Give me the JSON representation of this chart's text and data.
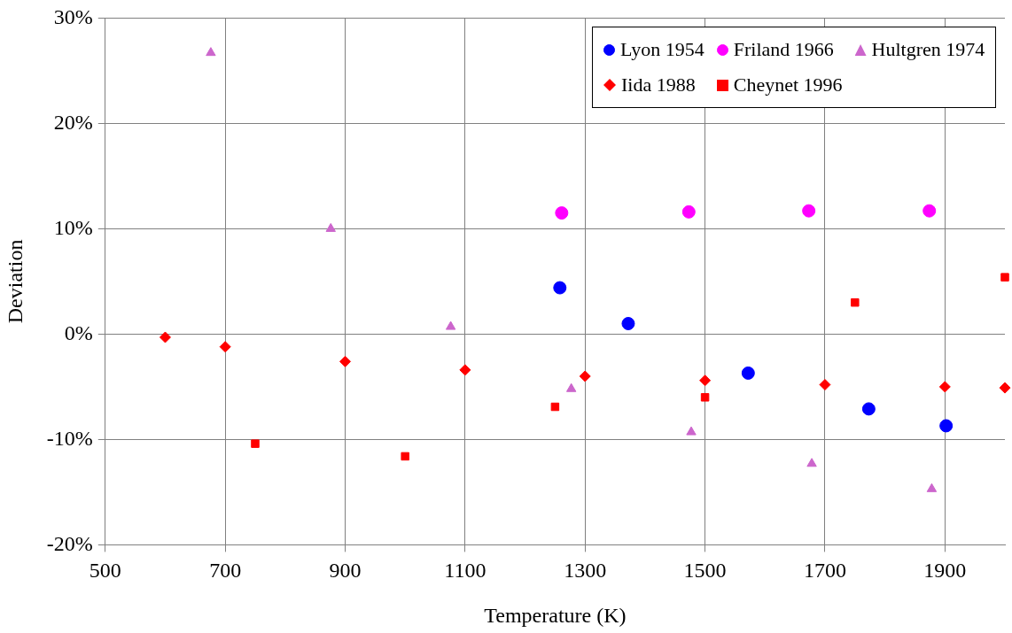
{
  "chart_data": {
    "type": "scatter",
    "xlabel": "Temperature (K)",
    "ylabel": "Deviation",
    "xlim": [
      500,
      2000
    ],
    "xticks": [
      500,
      700,
      900,
      1100,
      1300,
      1500,
      1700,
      1900
    ],
    "ylim": [
      -20,
      30
    ],
    "yticks": [
      {
        "value": -20,
        "label": "-20%"
      },
      {
        "value": -10,
        "label": "-10%"
      },
      {
        "value": 0,
        "label": "0%"
      },
      {
        "value": 10,
        "label": "10%"
      },
      {
        "value": 20,
        "label": "20%"
      },
      {
        "value": 30,
        "label": "30%"
      }
    ],
    "grid": true,
    "legend": "top right",
    "series": [
      {
        "name": "Lyon 1954",
        "color": "#0000ff",
        "marker": "circle",
        "x": [
          1258,
          1372,
          1572,
          1773,
          1902
        ],
        "values": [
          4.4,
          1.0,
          -3.7,
          -7.1,
          -8.7
        ]
      },
      {
        "name": "Friland 1966",
        "color": "#ff00ff",
        "marker": "circle",
        "x": [
          1261,
          1473,
          1673,
          1874
        ],
        "values": [
          11.5,
          11.6,
          11.7,
          11.7
        ]
      },
      {
        "name": "Hultgren 1974",
        "color": "#cc66cc",
        "marker": "triangle",
        "x": [
          676,
          876,
          1076,
          1277,
          1477,
          1678,
          1878
        ],
        "values": [
          26.7,
          10.0,
          0.7,
          -5.2,
          -9.3,
          -12.3,
          -14.7
        ]
      },
      {
        "name": "Iida 1988",
        "color": "#ff0000",
        "marker": "diamond",
        "x": [
          600,
          700,
          900,
          1100,
          1300,
          1500,
          1700,
          1900,
          2000
        ],
        "values": [
          -0.3,
          -1.2,
          -2.6,
          -3.4,
          -4.0,
          -4.4,
          -4.8,
          -5.0,
          -5.1
        ]
      },
      {
        "name": "Cheynet 1996",
        "color": "#ff0000",
        "marker": "square",
        "x": [
          750,
          1000,
          1250,
          1500,
          1750,
          2000
        ],
        "values": [
          -10.4,
          -11.6,
          -6.9,
          -6.0,
          3.0,
          5.4
        ]
      }
    ]
  }
}
